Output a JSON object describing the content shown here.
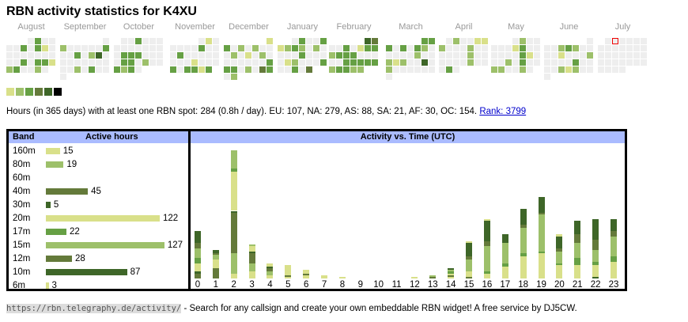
{
  "title": "RBN activity statistics for K4XU",
  "colors": {
    "empty": "#eeeeee",
    "levels": [
      "#eeeeee",
      "#d9e08a",
      "#9dc06a",
      "#66a044",
      "#647a3a",
      "#3e6628",
      "#000000"
    ],
    "header": "#aabbff"
  },
  "calendar": [
    {
      "label": "August",
      "offset": 3,
      "days": "0300003031000000000030331230020"
    },
    {
      "label": "September",
      "offset": 6,
      "days": "020000030030250000000000203000"
    },
    {
      "label": "October",
      "offset": 1,
      "days": "0030000000000033300003302003230"
    },
    {
      "label": "November",
      "offset": 4,
      "days": "010000030003000000001000303313"
    },
    {
      "label": "December",
      "offset": 6,
      "days": "1302020002010200000003330204302"
    },
    {
      "label": "January",
      "offset": 2,
      "days": "0300312320200003000012000300304"
    },
    {
      "label": "February",
      "offset": 5,
      "days": "5400301332333000003333323322"
    },
    {
      "label": "March",
      "offset": 5,
      "days": "3330303200000200212005020000000"
    },
    {
      "label": "April",
      "offset": 1,
      "days": "020011200020000002000000200030"
    },
    {
      "label": "May",
      "offset": 3,
      "days": "0200000130000003100020300220020"
    },
    {
      "label": "June",
      "offset": 6,
      "days": "000232000010002000030000212000"
    },
    {
      "label": "July",
      "offset": 1,
      "today": 1,
      "days": "0000000000000000000000000000000"
    }
  ],
  "summary": {
    "text": "Hours (in 365 days) with at least one RBN spot: 284 (0.8h / day). EU: 107, NA: 279, AS: 88, SA: 21, AF: 30, OC: 154.",
    "rank_link": "Rank: 3799"
  },
  "bands": {
    "header_band": "Band",
    "header_hours": "Active hours",
    "items": [
      {
        "band": "160m",
        "hours": 15,
        "level": 1
      },
      {
        "band": "80m",
        "hours": 19,
        "level": 2
      },
      {
        "band": "60m",
        "hours": null,
        "level": 3
      },
      {
        "band": "40m",
        "hours": 45,
        "level": 4
      },
      {
        "band": "30m",
        "hours": 5,
        "level": 5
      },
      {
        "band": "20m",
        "hours": 122,
        "level": 1
      },
      {
        "band": "17m",
        "hours": 22,
        "level": 3
      },
      {
        "band": "15m",
        "hours": 127,
        "level": 2
      },
      {
        "band": "12m",
        "hours": 28,
        "level": 4
      },
      {
        "band": "10m",
        "hours": 87,
        "level": 5
      },
      {
        "band": "6m",
        "hours": 3,
        "level": 1
      }
    ]
  },
  "chart_data": {
    "type": "bar",
    "stacked": true,
    "title": "Activity vs. Time (UTC)",
    "categories": [
      "0",
      "1",
      "2",
      "3",
      "4",
      "5",
      "6",
      "7",
      "8",
      "9",
      "10",
      "11",
      "12",
      "13",
      "14",
      "15",
      "16",
      "17",
      "18",
      "19",
      "20",
      "21",
      "22",
      "23"
    ],
    "band_order": [
      "160m",
      "80m",
      "60m",
      "40m",
      "30m",
      "20m",
      "17m",
      "15m",
      "12m",
      "10m",
      "6m"
    ],
    "ymax": 80,
    "hours": [
      {
        "40m": 3,
        "30m": 1,
        "20m": 5,
        "17m": 3,
        "15m": 6,
        "12m": 3,
        "10m": 7
      },
      {
        "40m": 6,
        "20m": 5,
        "15m": 3,
        "12m": 1,
        "10m": 2
      },
      {
        "160m": 3,
        "80m": 12,
        "40m": 24,
        "30m": 1,
        "20m": 23,
        "17m": 2,
        "15m": 11
      },
      {
        "160m": 4,
        "80m": 5,
        "40m": 6,
        "30m": 1,
        "20m": 3,
        "15m": 1
      },
      {
        "160m": 2,
        "80m": 2,
        "40m": 2,
        "30m": 1,
        "20m": 2
      },
      {
        "160m": 1,
        "40m": 1,
        "20m": 6
      },
      {
        "160m": 2,
        "40m": 1,
        "20m": 2
      },
      {
        "20m": 2
      },
      {
        "20m": 1
      },
      {},
      {},
      {},
      {
        "20m": 1
      },
      {
        "40m": 1,
        "15m": 1
      },
      {
        "160m": 1,
        "40m": 1,
        "20m": 1,
        "17m": 1,
        "15m": 1,
        "10m": 1
      },
      {
        "40m": 1,
        "20m": 3,
        "15m": 7,
        "12m": 2,
        "10m": 8,
        "6m": 1
      },
      {
        "20m": 3,
        "17m": 1,
        "15m": 15,
        "12m": 3,
        "10m": 12,
        "6m": 1
      },
      {
        "20m": 7,
        "17m": 2,
        "15m": 12,
        "10m": 5
      },
      {
        "20m": 13,
        "17m": 2,
        "15m": 15,
        "12m": 2,
        "10m": 9
      },
      {
        "20m": 15,
        "17m": 1,
        "15m": 22,
        "12m": 1,
        "10m": 9
      },
      {
        "20m": 8,
        "17m": 1,
        "15m": 7,
        "12m": 2,
        "10m": 7,
        "6m": 1
      },
      {
        "20m": 8,
        "17m": 4,
        "15m": 9,
        "12m": 5,
        "10m": 8
      },
      {
        "30m": 1,
        "20m": 7,
        "17m": 2,
        "15m": 7,
        "12m": 6,
        "10m": 12
      },
      {
        "20m": 10,
        "17m": 3,
        "15m": 12,
        "12m": 3,
        "10m": 7
      }
    ]
  },
  "footer": {
    "url": "https://rbn.telegraphy.de/activity/",
    "text": " - Search for any callsign and create your own embeddable RBN widget! A free service by DJ5CW."
  }
}
